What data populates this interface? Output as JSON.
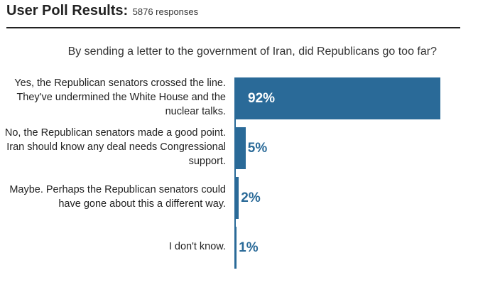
{
  "header": {
    "title": "User Poll Results:",
    "subtitle": "5876 responses"
  },
  "chart_data": {
    "type": "bar",
    "orientation": "horizontal",
    "title": "By sending a letter to the government of Iran, did Republicans go too far?",
    "categories": [
      "Yes, the Republican senators crossed the line. They've undermined the White House and the nuclear talks.",
      "No, the Republican senators made a good point. Iran should know any deal needs Congressional support.",
      "Maybe. Perhaps the Republican senators could have gone about this a different way.",
      "I don't know."
    ],
    "values": [
      92,
      5,
      2,
      1
    ],
    "labels": [
      "92%",
      "5%",
      "2%",
      "1%"
    ],
    "unit": "%",
    "xlim": [
      0,
      100
    ],
    "grid": false,
    "legend": "none",
    "colors": {
      "bar": "#2a6a98",
      "label_inside": "#ffffff",
      "label_outside": "#2a6a98"
    }
  }
}
